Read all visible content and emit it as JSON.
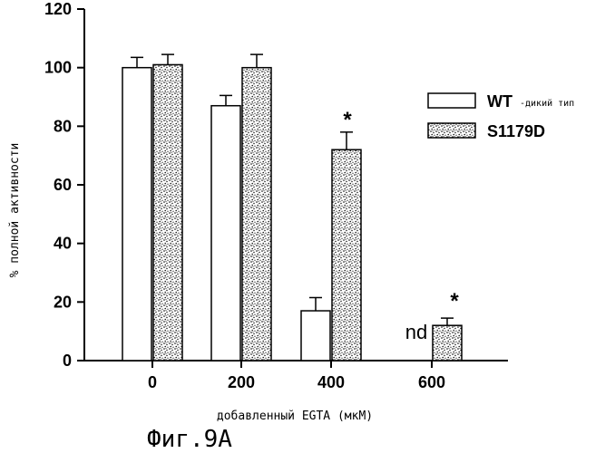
{
  "chart_data": {
    "type": "bar",
    "categories": [
      "0",
      "200",
      "400",
      "600"
    ],
    "series": [
      {
        "name": "WT",
        "name_suffix": "-дикий тип",
        "values": [
          100,
          87,
          17,
          null
        ],
        "errors": [
          3.5,
          3.5,
          4.5,
          null
        ],
        "fill": "#ffffff"
      },
      {
        "name": "S1179D",
        "values": [
          101,
          100,
          72,
          12
        ],
        "errors": [
          3.5,
          4.5,
          6,
          2.5
        ],
        "fill": "stipple"
      }
    ],
    "ylim": [
      0,
      120
    ],
    "yticks": [
      "0",
      "20",
      "40",
      "60",
      "80",
      "100",
      "120"
    ],
    "xlabel": "добавленный EGTA (мкМ)",
    "ylabel": "% полной активности",
    "annotations": {
      "star": "*",
      "nd": "nd"
    },
    "legend_position": "right",
    "grid": false
  },
  "caption": "Фиг.9А"
}
